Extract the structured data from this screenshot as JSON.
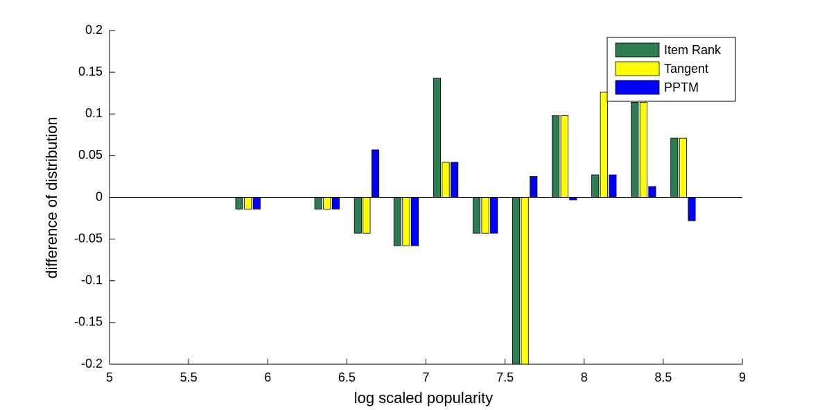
{
  "chart_data": {
    "type": "bar",
    "xlabel": "log scaled popularity",
    "ylabel": "difference of distribution",
    "x": [
      5.875,
      6.375,
      6.625,
      6.875,
      7.125,
      7.375,
      7.625,
      7.875,
      8.125,
      8.375,
      8.625
    ],
    "series": [
      {
        "name": "Item Rank",
        "color": "#2e7d52",
        "values": [
          -0.014,
          -0.014,
          -0.043,
          -0.058,
          0.143,
          -0.043,
          -0.2,
          0.098,
          0.027,
          0.114,
          0.071
        ]
      },
      {
        "name": "Tangent",
        "color": "#ffff00",
        "values": [
          -0.014,
          -0.014,
          -0.043,
          -0.058,
          0.042,
          -0.043,
          -0.2,
          0.098,
          0.126,
          0.114,
          0.071
        ]
      },
      {
        "name": "PPTM",
        "color": "#0000ff",
        "values": [
          -0.014,
          -0.014,
          0.057,
          -0.058,
          0.042,
          -0.043,
          0.025,
          -0.003,
          0.027,
          0.013,
          -0.028
        ]
      }
    ],
    "xlim": [
      5,
      9
    ],
    "xticks": [
      5,
      5.5,
      6,
      6.5,
      7,
      7.5,
      8,
      8.5,
      9
    ],
    "ylim": [
      -0.2,
      0.2
    ],
    "yticks": [
      -0.2,
      -0.15,
      -0.1,
      -0.05,
      0,
      0.05,
      0.1,
      0.15,
      0.2
    ],
    "legend": "top-right"
  }
}
